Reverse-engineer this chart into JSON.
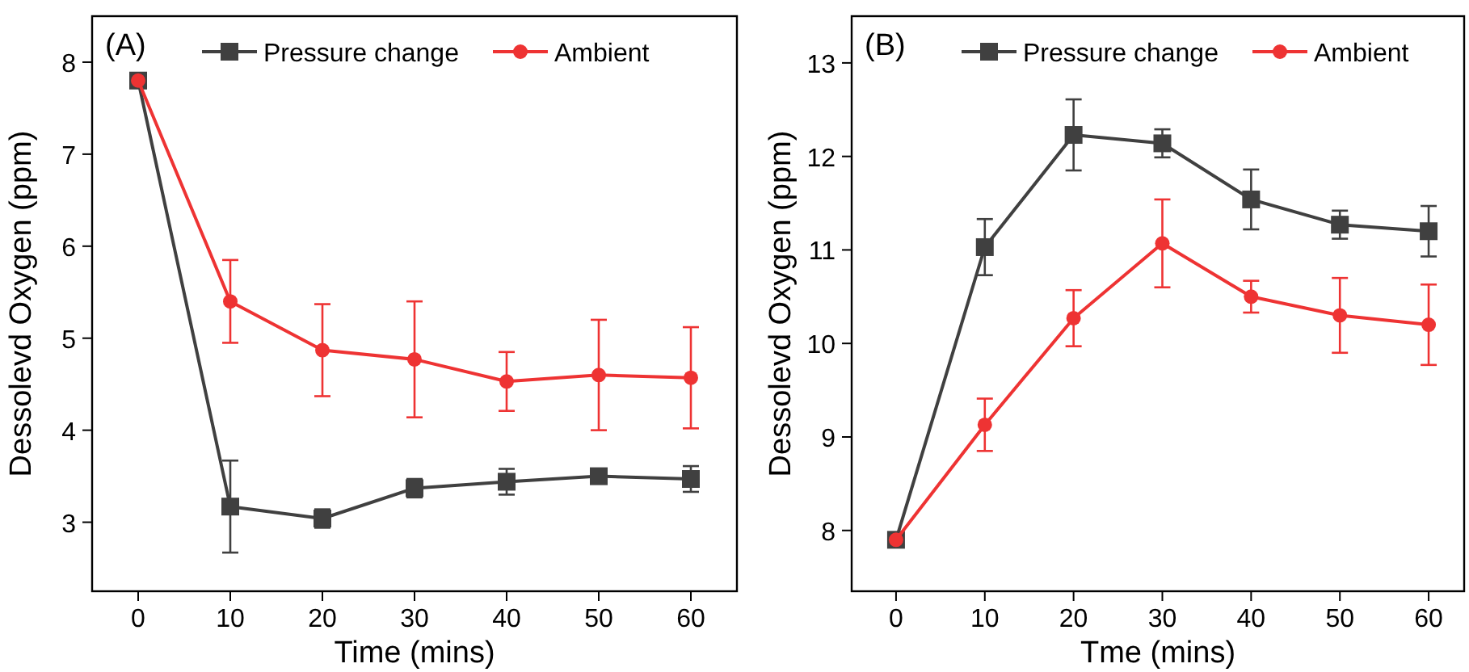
{
  "chart_data": [
    {
      "type": "line",
      "annotations": [
        "(A)"
      ],
      "xlabel": "Time (mins)",
      "ylabel": "Dessolevd Oxygen (ppm)",
      "x": [
        0,
        10,
        20,
        30,
        40,
        50,
        60
      ],
      "xlim": [
        -5,
        65
      ],
      "xticks": [
        0,
        10,
        20,
        30,
        40,
        50,
        60
      ],
      "ylim": [
        2.25,
        8.5
      ],
      "yticks": [
        3,
        4,
        5,
        6,
        7,
        8
      ],
      "legend": "top",
      "grid": false,
      "series": [
        {
          "name": "Pressure change",
          "color": "#404040",
          "marker": "square",
          "values": [
            7.8,
            3.17,
            3.04,
            3.37,
            3.44,
            3.5,
            3.47
          ],
          "errors": [
            null,
            0.5,
            0.1,
            0.1,
            0.14,
            0.08,
            0.14
          ]
        },
        {
          "name": "Ambient",
          "color": "#ee3333",
          "marker": "circle",
          "values": [
            7.8,
            5.4,
            4.87,
            4.77,
            4.53,
            4.6,
            4.57
          ],
          "errors": [
            null,
            0.45,
            0.5,
            0.63,
            0.32,
            0.6,
            0.55
          ]
        }
      ]
    },
    {
      "type": "line",
      "annotations": [
        "(B)"
      ],
      "xlabel": "Tme (mins)",
      "ylabel": "Dessolevd Oxygen (ppm)",
      "x": [
        0,
        10,
        20,
        30,
        40,
        50,
        60
      ],
      "xlim": [
        -5,
        64
      ],
      "xticks": [
        0,
        10,
        20,
        30,
        40,
        50,
        60
      ],
      "ylim": [
        7.35,
        13.5
      ],
      "yticks": [
        8,
        9,
        10,
        11,
        12,
        13
      ],
      "legend": "top",
      "grid": false,
      "series": [
        {
          "name": "Pressure change",
          "color": "#404040",
          "marker": "square",
          "values": [
            7.9,
            11.03,
            12.23,
            12.14,
            11.54,
            11.27,
            11.2
          ],
          "errors": [
            null,
            0.3,
            0.38,
            0.15,
            0.32,
            0.15,
            0.27
          ]
        },
        {
          "name": "Ambient",
          "color": "#ee3333",
          "marker": "circle",
          "values": [
            7.9,
            9.13,
            10.27,
            11.07,
            10.5,
            10.3,
            10.2
          ],
          "errors": [
            null,
            0.28,
            0.3,
            0.47,
            0.17,
            0.4,
            0.43
          ]
        }
      ]
    }
  ]
}
